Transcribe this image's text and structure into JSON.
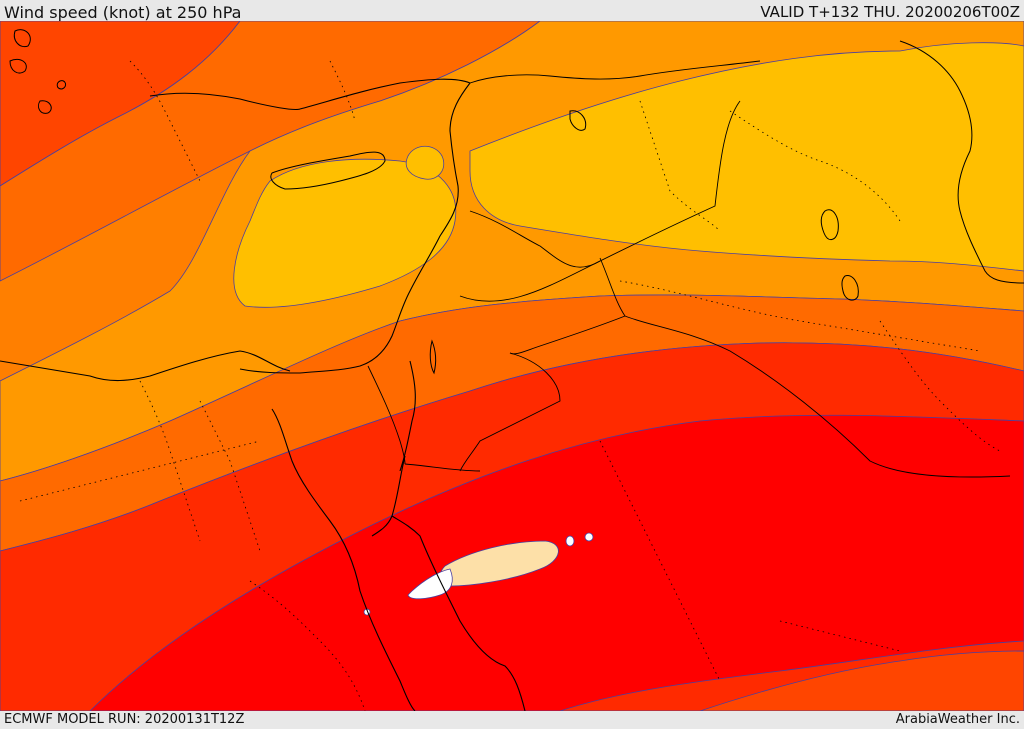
{
  "header": {
    "title": "Wind speed (knot) at 250 hPa",
    "valid_time": "VALID T+132 THU. 20200206T00Z"
  },
  "footer": {
    "model_run": "ECMWF MODEL RUN: 20200131T12Z",
    "credit": "ArabiaWeather Inc."
  },
  "map": {
    "field": "wind speed at 250 hPa",
    "shading_colors": {
      "band_1": "#ff4500",
      "band_2": "#ff6a00",
      "band_3": "#ff7f00",
      "band_4": "#ff9900",
      "band_5": "#ffbf00",
      "band_6": "#ff2a00",
      "band_7": "#ff0000",
      "band_8_core": "#fde0a8",
      "band_9_core": "#ffffff"
    },
    "contour_color": "#4a3fa0",
    "coastline_color": "#000000",
    "border_style": "dotted"
  }
}
